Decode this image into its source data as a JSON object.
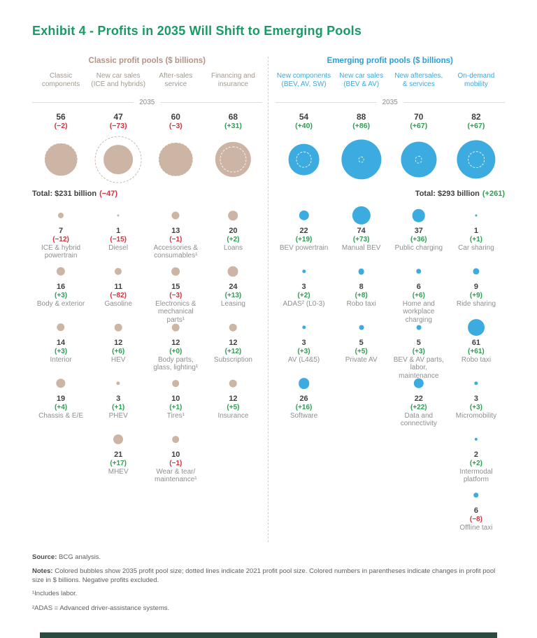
{
  "title": "Exhibit 4 - Profits in 2035 Will Shift to Emerging Pools",
  "colors": {
    "title_green": "#1a9a64",
    "classic_fill": "#cdb5a5",
    "classic_header": "#b49385",
    "classic_label": "#a29a92",
    "emerging_fill": "#3cabdf",
    "emerging_header": "#2ba0d6",
    "emerging_label": "#3fa7da",
    "positive": "#2f9e52",
    "negative": "#d03340",
    "label_gray": "#8f8f8f",
    "value_dark": "#3f3f3f",
    "bottom_bar": "#2d4a41"
  },
  "chart_data": {
    "type": "bubble",
    "unit": "$ billions",
    "year_current": "2035",
    "year_previous": "2021",
    "legend_note": "Solid bubble = 2035 pool size; dashed circle = 2021 pool size; number in parentheses = change in $ billions",
    "groups": [
      {
        "id": "classic",
        "header": "Classic profit pools ($ billions)",
        "total": "Total: $231 billion",
        "total_change": "(−47)",
        "columns": [
          {
            "label": "Classic components",
            "pool": {
              "value": 56,
              "change": "(−2)"
            },
            "items": [
              {
                "value": 7,
                "change": "(−12)",
                "label": "ICE & hybrid powertrain"
              },
              {
                "value": 16,
                "change": "(+3)",
                "label": "Body & exterior"
              },
              {
                "value": 14,
                "change": "(+3)",
                "label": "Interior"
              },
              {
                "value": 19,
                "change": "(+4)",
                "label": "Chassis & E/E"
              }
            ]
          },
          {
            "label": "New car sales (ICE and hybrids)",
            "pool": {
              "value": 47,
              "change": "(−73)"
            },
            "items": [
              {
                "value": 1,
                "change": "(−15)",
                "label": "Diesel"
              },
              {
                "value": 11,
                "change": "(−82)",
                "label": "Gasoline"
              },
              {
                "value": 12,
                "change": "(+6)",
                "label": "HEV"
              },
              {
                "value": 3,
                "change": "(+1)",
                "label": "PHEV"
              },
              {
                "value": 21,
                "change": "(+17)",
                "label": "MHEV"
              }
            ]
          },
          {
            "label": "After-sales service",
            "pool": {
              "value": 60,
              "change": "(−3)"
            },
            "items": [
              {
                "value": 13,
                "change": "(−1)",
                "label": "Accessories & consumables¹"
              },
              {
                "value": 15,
                "change": "(−3)",
                "label": "Electronics & mechanical parts¹"
              },
              {
                "value": 12,
                "change": "(+0)",
                "label": "Body parts, glass, lighting¹"
              },
              {
                "value": 10,
                "change": "(+1)",
                "label": "Tires¹"
              },
              {
                "value": 10,
                "change": "(−1)",
                "label": "Wear & tear/ maintenance¹"
              }
            ]
          },
          {
            "label": "Financing and insurance",
            "pool": {
              "value": 68,
              "change": "(+31)"
            },
            "items": [
              {
                "value": 20,
                "change": "(+2)",
                "label": "Loans"
              },
              {
                "value": 24,
                "change": "(+13)",
                "label": "Leasing"
              },
              {
                "value": 12,
                "change": "(+12)",
                "label": "Subscription"
              },
              {
                "value": 12,
                "change": "(+5)",
                "label": "Insurance"
              }
            ]
          }
        ]
      },
      {
        "id": "emerging",
        "header": "Emerging profit pools ($ billions)",
        "total": "Total: $293 billion",
        "total_change": "(+261)",
        "columns": [
          {
            "label": "New components (BEV, AV, SW)",
            "pool": {
              "value": 54,
              "change": "(+40)"
            },
            "items": [
              {
                "value": 22,
                "change": "(+19)",
                "label": "BEV powertrain"
              },
              {
                "value": 3,
                "change": "(+2)",
                "label": "ADAS² (L0-3)"
              },
              {
                "value": 3,
                "change": "(+3)",
                "label": "AV (L4&5)"
              },
              {
                "value": 26,
                "change": "(+16)",
                "label": "Software"
              }
            ]
          },
          {
            "label": "New car sales (BEV & AV)",
            "pool": {
              "value": 88,
              "change": "(+86)"
            },
            "items": [
              {
                "value": 74,
                "change": "(+73)",
                "label": "Manual BEV"
              },
              {
                "value": 8,
                "change": "(+8)",
                "label": "Robo taxi"
              },
              {
                "value": 5,
                "change": "(+5)",
                "label": "Private AV"
              }
            ]
          },
          {
            "label": "New aftersales, & services",
            "pool": {
              "value": 70,
              "change": "(+67)"
            },
            "items": [
              {
                "value": 37,
                "change": "(+36)",
                "label": "Public charging"
              },
              {
                "value": 6,
                "change": "(+6)",
                "label": "Home and workplace charging"
              },
              {
                "value": 5,
                "change": "(+3)",
                "label": "BEV & AV parts, labor, maintenance"
              },
              {
                "value": 22,
                "change": "(+22)",
                "label": "Data and connectivity"
              }
            ]
          },
          {
            "label": "On-demand mobility",
            "pool": {
              "value": 82,
              "change": "(+67)"
            },
            "items": [
              {
                "value": 1,
                "change": "(+1)",
                "label": "Car sharing"
              },
              {
                "value": 9,
                "change": "(+9)",
                "label": "Ride sharing"
              },
              {
                "value": 61,
                "change": "(+61)",
                "label": "Robo taxi"
              },
              {
                "value": 3,
                "change": "(+3)",
                "label": "Micromobility"
              },
              {
                "value": 2,
                "change": "(+2)",
                "label": "Intermodal platform"
              },
              {
                "value": 6,
                "change": "(−8)",
                "label": "Offline taxi"
              }
            ]
          }
        ]
      }
    ]
  },
  "footer": {
    "source_label": "Source:",
    "source_text": " BCG analysis.",
    "notes_label": "Notes:",
    "notes_text": " Colored bubbles show 2035 profit pool size; dotted lines indicate 2021 profit pool size. Colored numbers in parentheses indicate changes in profit pool size in $ billions. Negative profits excluded.",
    "footnote1": "¹Includes labor.",
    "footnote2": "²ADAS = Advanced driver-assistance systems."
  }
}
